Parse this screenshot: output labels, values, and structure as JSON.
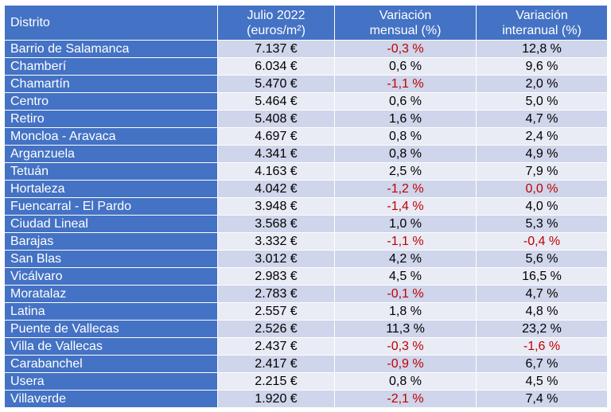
{
  "header": {
    "distrito": "Distrito",
    "julio_line1": "Julio 2022",
    "julio_line2": "(euros/m²)",
    "mensual_line1": "Variación",
    "mensual_line2": "mensual (%)",
    "interanual_line1": "Variación",
    "interanual_line2": "interanual (%)"
  },
  "colors": {
    "header_bg": "#4472c4",
    "row_odd": "#cfd5ea",
    "row_even": "#e9ebf5",
    "negative": "#c00000"
  },
  "rows": [
    {
      "distrito": "Barrio de Salamanca",
      "precio": "7.137 €",
      "mensual": "-0,3 %",
      "interanual": "12,8 %"
    },
    {
      "distrito": "Chamberí",
      "precio": "6.034 €",
      "mensual": "0,6 %",
      "interanual": "9,6 %"
    },
    {
      "distrito": "Chamartín",
      "precio": "5.470 €",
      "mensual": "-1,1 %",
      "interanual": "2,0 %"
    },
    {
      "distrito": "Centro",
      "precio": "5.464 €",
      "mensual": "0,6 %",
      "interanual": "5,0 %"
    },
    {
      "distrito": "Retiro",
      "precio": "5.408 €",
      "mensual": "1,6 %",
      "interanual": "4,7 %"
    },
    {
      "distrito": "Moncloa - Aravaca",
      "precio": "4.697 €",
      "mensual": "0,8 %",
      "interanual": "2,4 %"
    },
    {
      "distrito": "Arganzuela",
      "precio": "4.341 €",
      "mensual": "0,8 %",
      "interanual": "4,9 %"
    },
    {
      "distrito": "Tetuán",
      "precio": "4.163 €",
      "mensual": "2,5 %",
      "interanual": "7,9 %"
    },
    {
      "distrito": "Hortaleza",
      "precio": "4.042 €",
      "mensual": "-1,2 %",
      "interanual": "0,0 %"
    },
    {
      "distrito": "Fuencarral - El Pardo",
      "precio": "3.948 €",
      "mensual": "-1,4 %",
      "interanual": "4,0 %"
    },
    {
      "distrito": "Ciudad Lineal",
      "precio": "3.568 €",
      "mensual": "1,0 %",
      "interanual": "5,3 %"
    },
    {
      "distrito": "Barajas",
      "precio": "3.332 €",
      "mensual": "-1,1 %",
      "interanual": "-0,4 %"
    },
    {
      "distrito": "San Blas",
      "precio": "3.012 €",
      "mensual": "4,2 %",
      "interanual": "5,6 %"
    },
    {
      "distrito": "Vicálvaro",
      "precio": "2.983 €",
      "mensual": "4,5 %",
      "interanual": "16,5 %"
    },
    {
      "distrito": "Moratalaz",
      "precio": "2.783 €",
      "mensual": "-0,1 %",
      "interanual": "4,7 %"
    },
    {
      "distrito": "Latina",
      "precio": "2.557 €",
      "mensual": "1,8 %",
      "interanual": "4,8 %"
    },
    {
      "distrito": "Puente de Vallecas",
      "precio": "2.526 €",
      "mensual": "11,3 %",
      "interanual": "23,2 %"
    },
    {
      "distrito": "Villa de Vallecas",
      "precio": "2.437 €",
      "mensual": "-0,3 %",
      "interanual": "-1,6 %"
    },
    {
      "distrito": "Carabanchel",
      "precio": "2.417 €",
      "mensual": "-0,9 %",
      "interanual": "6,7 %"
    },
    {
      "distrito": "Usera",
      "precio": "2.215 €",
      "mensual": "0,8 %",
      "interanual": "4,5 %"
    },
    {
      "distrito": "Villaverde",
      "precio": "1.920 €",
      "mensual": "-2,1 %",
      "interanual": "7,4 %"
    }
  ],
  "red_cells": {
    "mensual": [
      0,
      2,
      8,
      9,
      11,
      14,
      17,
      18,
      20
    ],
    "interanual": [
      8,
      11,
      17
    ]
  }
}
